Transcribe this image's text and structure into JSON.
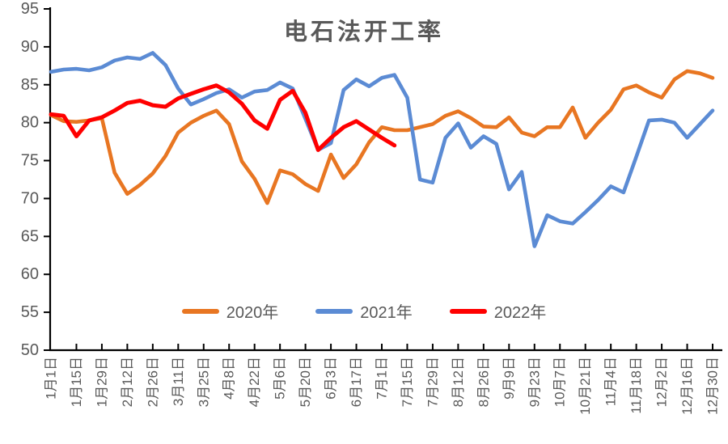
{
  "title": "电石法开工率",
  "text_color": "#595959",
  "axis_color": "#000000",
  "chart_data": {
    "type": "line",
    "title": "电石法开工率",
    "grid": false,
    "legend_position": "bottom",
    "ylim": [
      50,
      95
    ],
    "y_ticks": [
      50,
      55,
      60,
      65,
      70,
      75,
      80,
      85,
      90,
      95
    ],
    "x_labels": [
      "1月1日",
      "1月15日",
      "1月29日",
      "2月12日",
      "2月26日",
      "3月11日",
      "3月25日",
      "4月8日",
      "4月22日",
      "5月6日",
      "5月20日",
      "6月3日",
      "6月17日",
      "7月1日",
      "7月15日",
      "7月29日",
      "8月12日",
      "8月26日",
      "9月9日",
      "9月23日",
      "10月7日",
      "10月21日",
      "11月4日",
      "11月18日",
      "12月2日",
      "12月16日",
      "12月30日"
    ],
    "points_per_label_interval": 2,
    "total_weekly_points": 53,
    "series": [
      {
        "name": "2020年",
        "color": "#E87622",
        "values": [
          81.0,
          80.2,
          80.1,
          80.3,
          80.6,
          73.4,
          70.6,
          71.8,
          73.3,
          75.6,
          78.7,
          80.0,
          80.9,
          81.6,
          79.8,
          74.9,
          72.6,
          69.4,
          73.7,
          73.2,
          71.9,
          71.0,
          75.8,
          72.7,
          74.5,
          77.4,
          79.4,
          79.0,
          79.0,
          79.4,
          79.8,
          80.9,
          81.5,
          80.6,
          79.5,
          79.4,
          80.7,
          78.7,
          78.2,
          79.4,
          79.4,
          82.0,
          78.0,
          80.0,
          81.7,
          84.4,
          84.9,
          84.0,
          83.3,
          85.7,
          86.8,
          86.5,
          85.9
        ]
      },
      {
        "name": "2021年",
        "color": "#5B8BD4",
        "values": [
          86.7,
          87.0,
          87.1,
          86.9,
          87.3,
          88.2,
          88.6,
          88.4,
          89.2,
          87.6,
          84.5,
          82.4,
          83.1,
          83.9,
          84.4,
          83.3,
          84.1,
          84.3,
          85.3,
          84.5,
          80.5,
          76.4,
          77.3,
          84.3,
          85.7,
          84.8,
          85.9,
          86.3,
          83.3,
          72.5,
          72.1,
          78.0,
          79.9,
          76.7,
          78.2,
          77.2,
          71.2,
          73.5,
          63.7,
          67.8,
          67.0,
          66.7,
          68.2,
          69.8,
          71.6,
          70.8,
          75.5,
          80.3,
          80.4,
          80.0,
          78.0,
          79.8,
          81.6
        ]
      },
      {
        "name": "2022年",
        "color": "#FF0000",
        "values": [
          81.1,
          80.9,
          78.2,
          80.3,
          80.7,
          81.6,
          82.6,
          82.9,
          82.3,
          82.1,
          83.2,
          83.8,
          84.4,
          84.9,
          84.0,
          82.5,
          80.3,
          79.2,
          83.0,
          84.2,
          81.3,
          76.4,
          78.0,
          79.4,
          80.2,
          79.1,
          78.0,
          77.0
        ]
      }
    ]
  }
}
